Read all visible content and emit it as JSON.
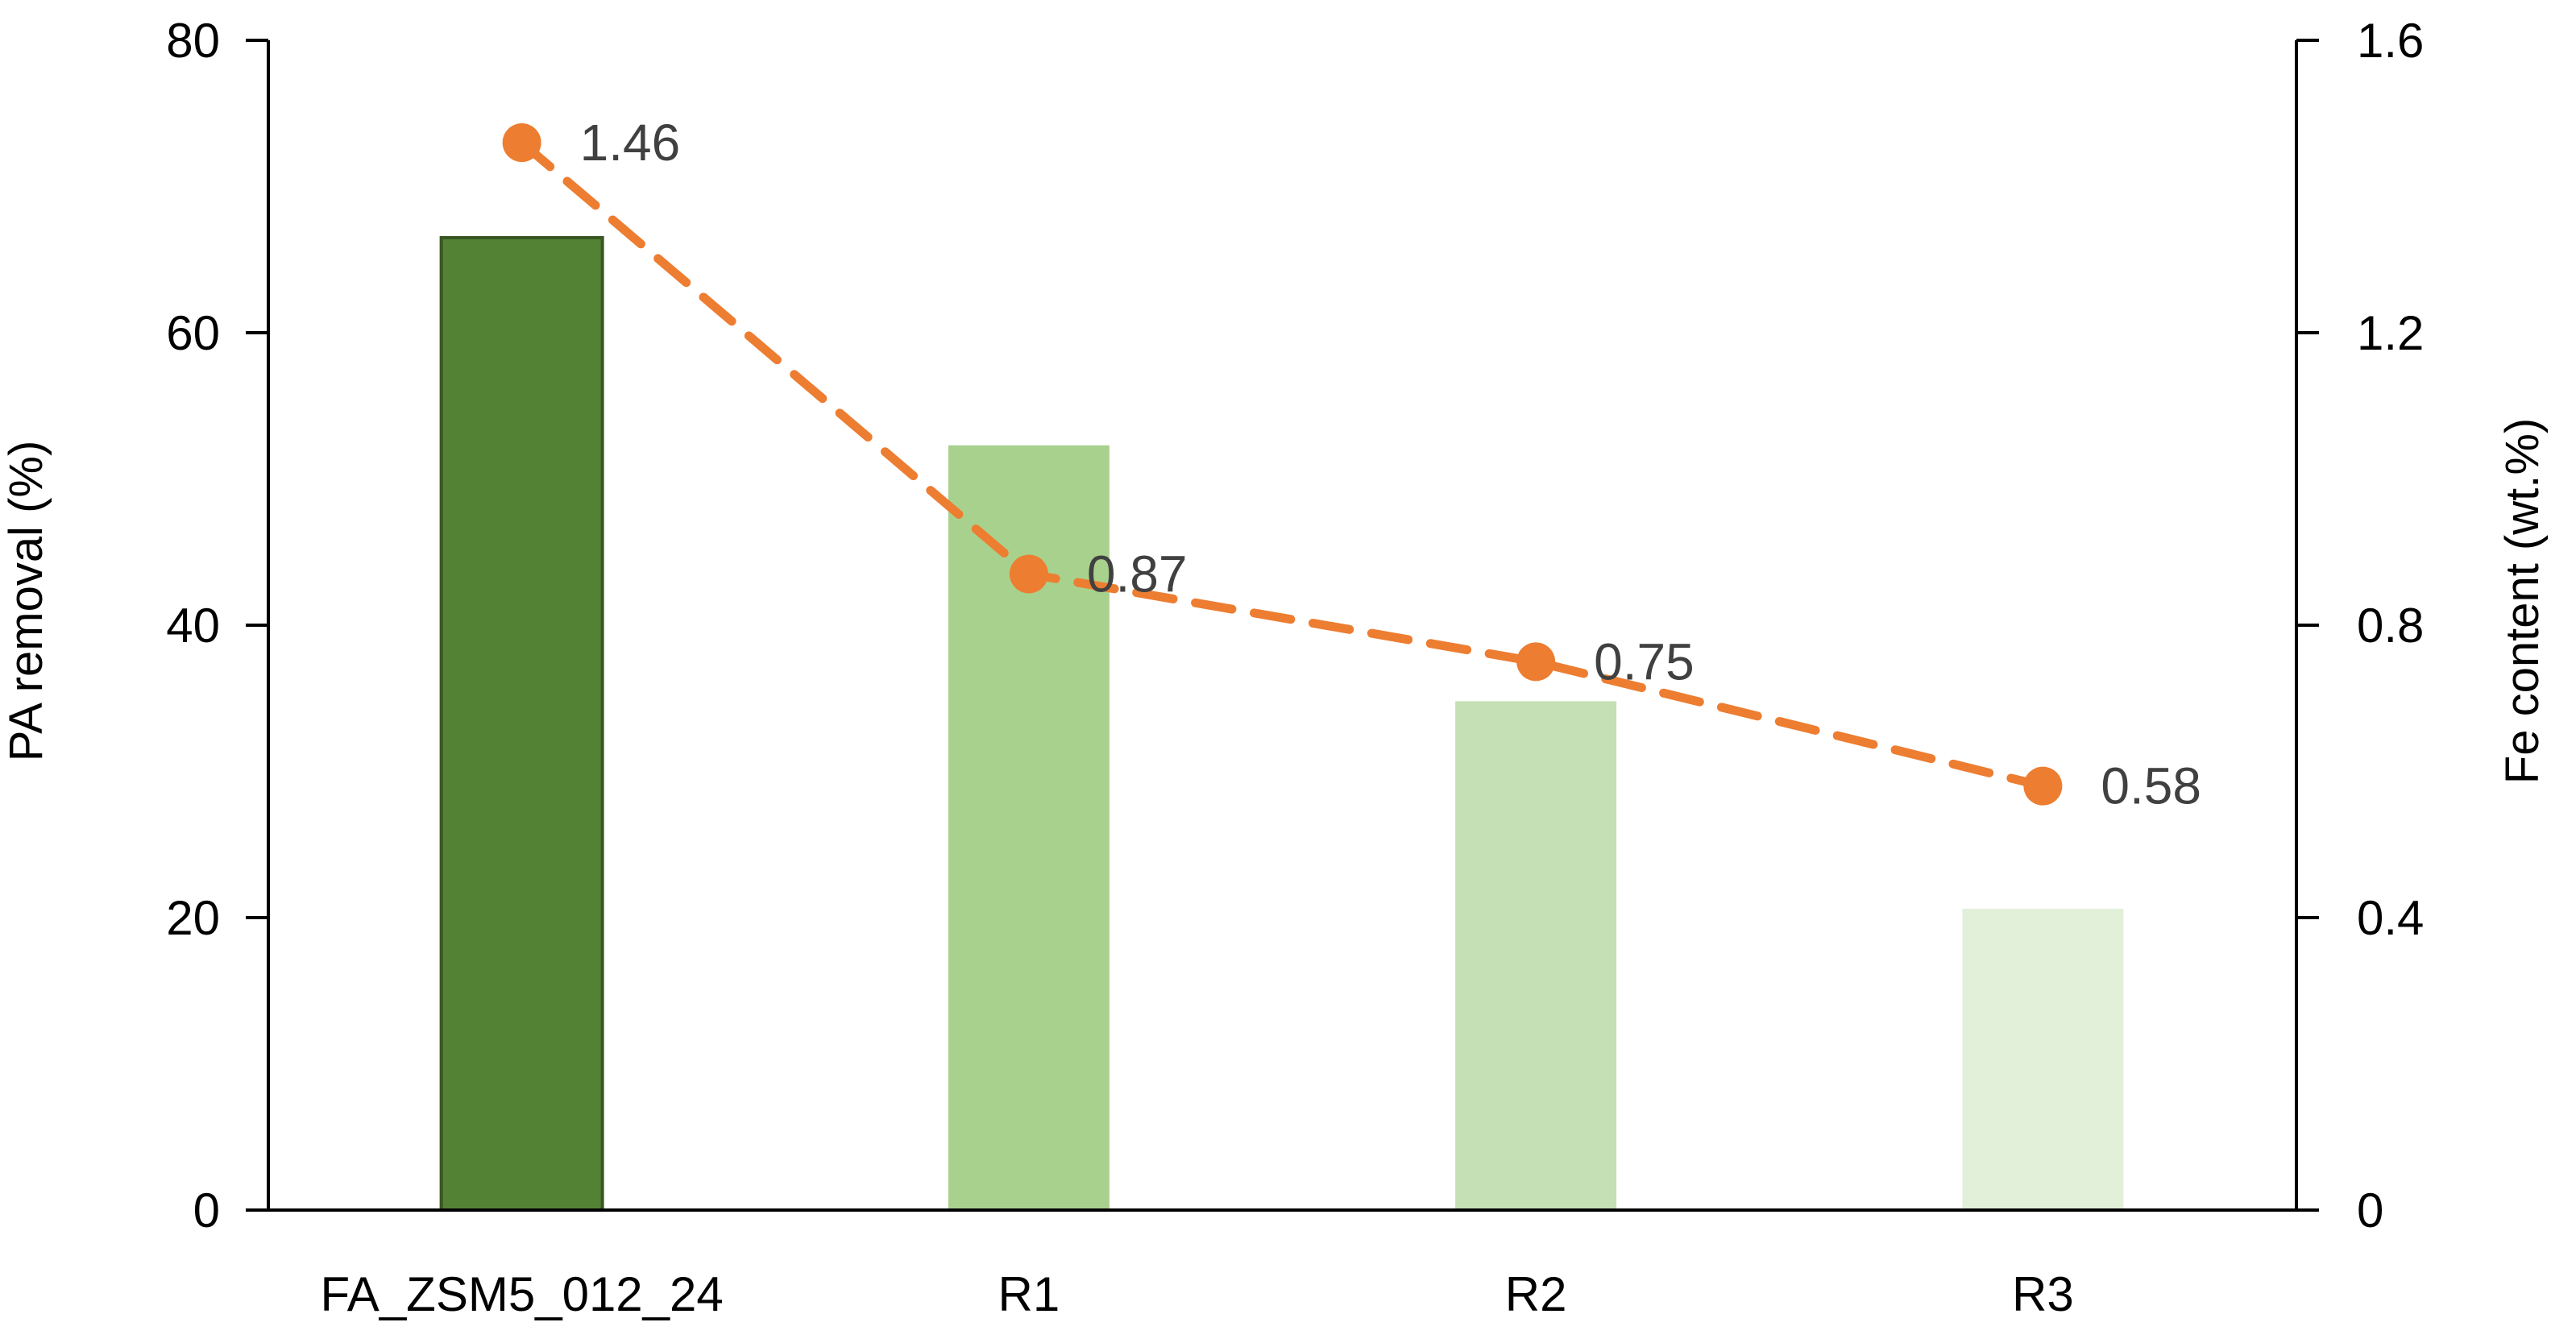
{
  "chart_data": {
    "type": "bar",
    "categories": [
      "FA_ZSM5_012_24",
      "R1",
      "R2",
      "R3"
    ],
    "bar_series": {
      "values": [
        66.5,
        52.3,
        34.8,
        20.6
      ],
      "colors": [
        "#548235",
        "#A9D18E",
        "#C5E0B4",
        "#E2F0D9"
      ],
      "border_colors": [
        "#385723",
        "none",
        "none",
        "none"
      ],
      "axis": "left"
    },
    "line_series": {
      "values": [
        1.46,
        0.87,
        0.75,
        0.58
      ],
      "labels": [
        "1.46",
        "0.87",
        "0.75",
        "0.58"
      ],
      "color": "#ED7D31",
      "style": "dashed",
      "marker": "circle",
      "axis": "right"
    },
    "ylabel": "PA removal (%)",
    "y2label": "Fe content (wt.%)",
    "ylim": [
      0,
      80
    ],
    "y2lim": [
      0,
      1.6
    ],
    "yticks": [
      "0",
      "20",
      "40",
      "60",
      "80"
    ],
    "y2ticks": [
      "0",
      "0.4",
      "0.8",
      "1.2",
      "1.6"
    ],
    "grid": false,
    "legend": "none",
    "axis_color": "#000000",
    "label_color": "#404040"
  }
}
